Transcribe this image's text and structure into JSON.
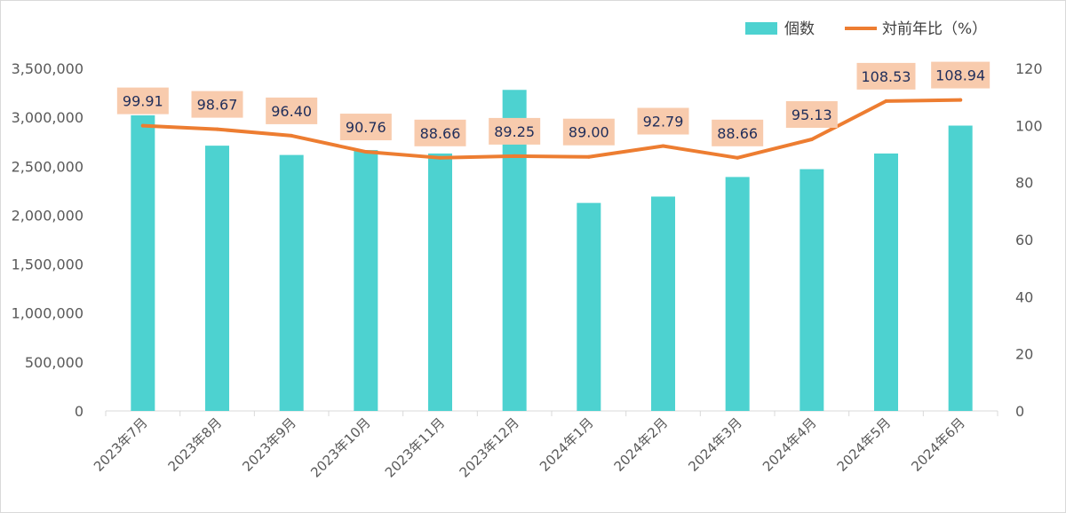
{
  "chart_data": {
    "type": "bar",
    "categories": [
      "2023年7月",
      "2023年8月",
      "2023年9月",
      "2023年10月",
      "2023年11月",
      "2023年12月",
      "2024年1月",
      "2024年2月",
      "2024年3月",
      "2024年4月",
      "2024年5月",
      "2024年6月"
    ],
    "series": [
      {
        "name": "個数",
        "type": "bar",
        "axis": "left",
        "color": "#4dd2d0",
        "values": [
          3020000,
          2710000,
          2615000,
          2665000,
          2630000,
          3280000,
          2125000,
          2190000,
          2390000,
          2470000,
          2630000,
          2915000
        ]
      },
      {
        "name": "対前年比（%）",
        "type": "line",
        "axis": "right",
        "color": "#ed7d31",
        "values": [
          99.91,
          98.67,
          96.4,
          90.76,
          88.66,
          89.25,
          89.0,
          92.79,
          88.66,
          95.13,
          108.53,
          108.94
        ],
        "labels": [
          "99.91",
          "98.67",
          "96.40",
          "90.76",
          "88.66",
          "89.25",
          "89.00",
          "92.79",
          "88.66",
          "95.13",
          "108.53",
          "108.94"
        ],
        "label_bg": "#f8cbad"
      }
    ],
    "y_left": {
      "range": [
        0,
        3500000
      ],
      "ticks": [
        0,
        500000,
        1000000,
        1500000,
        2000000,
        2500000,
        3000000,
        3500000
      ],
      "tick_labels": [
        "0",
        "500,000",
        "1,000,000",
        "1,500,000",
        "2,000,000",
        "2,500,000",
        "3,000,000",
        "3,500,000"
      ]
    },
    "y_right": {
      "range": [
        0,
        120
      ],
      "ticks": [
        0,
        20,
        40,
        60,
        80,
        100,
        120
      ],
      "tick_labels": [
        "0",
        "20",
        "40",
        "60",
        "80",
        "100",
        "120"
      ]
    },
    "grid": false,
    "legend": "top-right",
    "xlabel": "",
    "ylabel": ""
  }
}
